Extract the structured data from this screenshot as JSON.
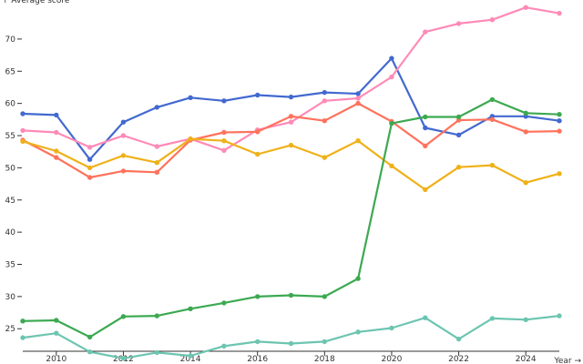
{
  "chart_data": {
    "type": "line",
    "title": "",
    "ylabel": "↑ Average score",
    "xlabel": "Year →",
    "x": [
      2009,
      2010,
      2011,
      2012,
      2013,
      2014,
      2015,
      2016,
      2017,
      2018,
      2019,
      2020,
      2021,
      2022,
      2023,
      2024,
      2025
    ],
    "xlim": [
      2009,
      2025
    ],
    "ylim": [
      21.5,
      75.5
    ],
    "x_ticks": [
      2010,
      2012,
      2014,
      2016,
      2018,
      2020,
      2022,
      2024
    ],
    "y_ticks": [
      25,
      30,
      35,
      40,
      45,
      50,
      55,
      60,
      65,
      70
    ],
    "grid": false,
    "legend": "none",
    "series": [
      {
        "color": "#4269d0",
        "values": [
          58.4,
          58.2,
          51.3,
          57.1,
          59.4,
          60.9,
          60.4,
          61.3,
          61.0,
          61.7,
          61.5,
          67.0,
          56.2,
          55.1,
          58.0,
          58.0,
          57.3
        ]
      },
      {
        "color": "#ff8ab7",
        "values": [
          55.8,
          55.5,
          53.2,
          55.0,
          53.3,
          54.5,
          52.7,
          55.9,
          57.1,
          60.4,
          60.8,
          64.1,
          71.1,
          72.4,
          73.0,
          74.9,
          74.0
        ]
      },
      {
        "color": "#ff725c",
        "values": [
          54.3,
          51.6,
          48.5,
          49.5,
          49.3,
          54.3,
          55.5,
          55.6,
          58.0,
          57.3,
          60.0,
          57.2,
          53.4,
          57.4,
          57.5,
          55.6,
          55.7
        ]
      },
      {
        "color": "#efb118",
        "values": [
          54.1,
          52.6,
          50.0,
          51.9,
          50.8,
          54.5,
          54.2,
          52.1,
          53.5,
          51.6,
          54.2,
          50.3,
          46.6,
          50.1,
          50.4,
          47.7,
          49.1
        ]
      },
      {
        "color": "#3ca951",
        "values": [
          26.2,
          26.3,
          23.7,
          26.9,
          27.0,
          28.1,
          29.0,
          30.0,
          30.2,
          30.0,
          32.8,
          56.9,
          57.9,
          57.9,
          60.6,
          58.5,
          58.3
        ]
      },
      {
        "color": "#6cc5b0",
        "values": [
          23.6,
          24.3,
          21.4,
          20.4,
          21.3,
          20.8,
          22.3,
          23.0,
          22.7,
          23.0,
          24.5,
          25.1,
          26.7,
          23.4,
          26.6,
          26.4,
          27.0
        ]
      }
    ]
  }
}
